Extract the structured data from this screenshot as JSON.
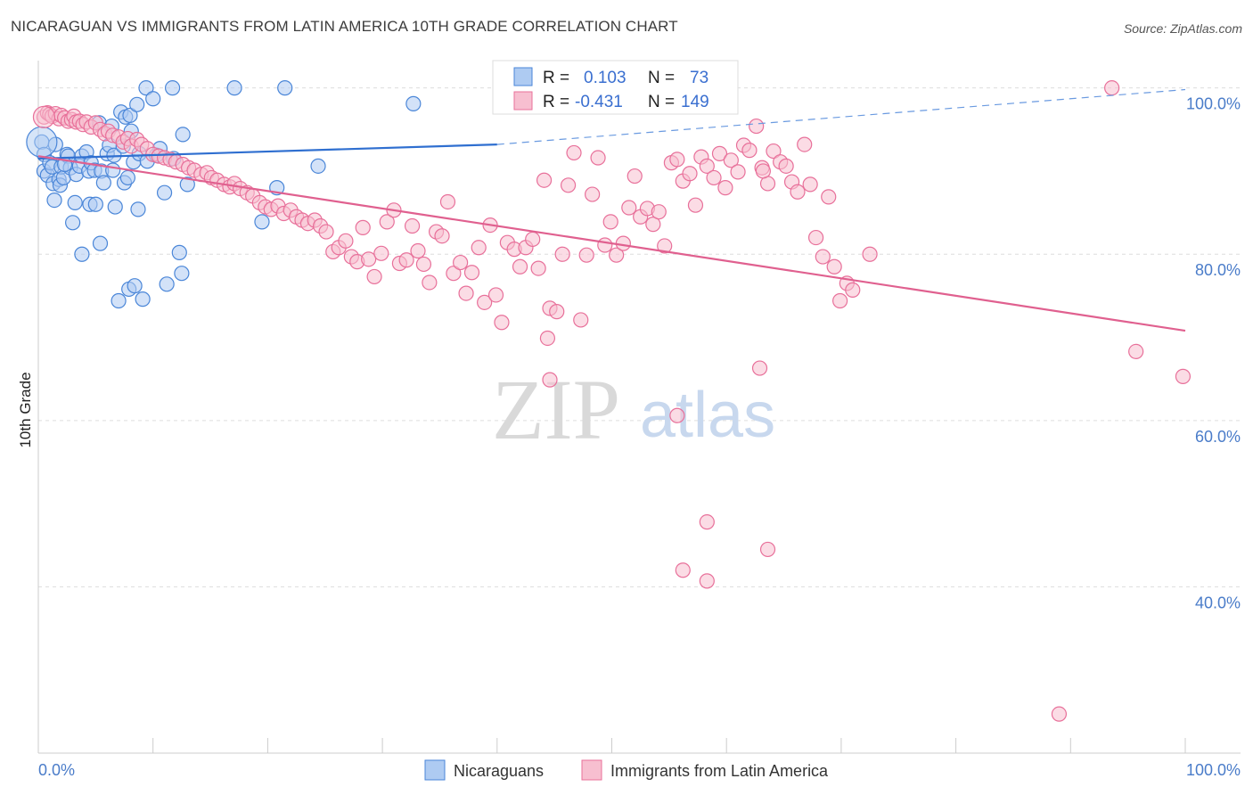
{
  "header": {
    "title": "NICARAGUAN VS IMMIGRANTS FROM LATIN AMERICA 10TH GRADE CORRELATION CHART",
    "source": "Source: ZipAtlas.com"
  },
  "watermark": {
    "zip": "ZIP",
    "atlas": "atlas"
  },
  "colors": {
    "blue": "#4a86d8",
    "blue_fill": "#aecbf2",
    "pink": "#e8709a",
    "pink_fill": "#f7bfd0",
    "tick": "#4a7cc9",
    "grid": "#dddddd"
  },
  "stats": {
    "r_label": "R =",
    "n_label": "N =",
    "blue": {
      "r": "0.103",
      "n": "73"
    },
    "pink": {
      "r": "-0.431",
      "n": "149"
    }
  },
  "legend": {
    "blue": "Nicaraguans",
    "pink": "Immigrants from Latin America"
  },
  "chart_data": {
    "type": "scatter",
    "title": "NICARAGUAN VS IMMIGRANTS FROM LATIN AMERICA 10TH GRADE CORRELATION CHART",
    "xlabel": "",
    "ylabel": "10th Grade",
    "xlim": [
      0,
      100
    ],
    "ylim": [
      20,
      102
    ],
    "x_tick_labels": [
      "0.0%",
      "100.0%"
    ],
    "y_ticks": [
      100,
      80,
      60,
      40
    ],
    "y_tick_labels": [
      "100.0%",
      "80.0%",
      "60.0%",
      "40.0%"
    ],
    "grid": true,
    "legend_position": "bottom",
    "series": [
      {
        "name": "Nicaraguans",
        "color": "#4a86d8",
        "r": 0.103,
        "n": 73,
        "trend": {
          "x": [
            0,
            40
          ],
          "y": [
            91.5,
            93.2
          ],
          "dashed_to": [
            100,
            99.8
          ]
        },
        "points": [
          [
            0.3,
            93.5
          ],
          [
            0.5,
            92
          ],
          [
            0.5,
            90
          ],
          [
            0.8,
            89.5
          ],
          [
            1,
            91
          ],
          [
            1.2,
            90.5
          ],
          [
            1.3,
            88.5
          ],
          [
            1.4,
            86.5
          ],
          [
            1.8,
            89
          ],
          [
            1.9,
            88.3
          ],
          [
            2,
            90.5
          ],
          [
            2.2,
            89.2
          ],
          [
            2.5,
            92
          ],
          [
            2.6,
            91.8
          ],
          [
            2.8,
            90.4
          ],
          [
            3,
            83.8
          ],
          [
            3.2,
            86.2
          ],
          [
            3.3,
            89.6
          ],
          [
            3.6,
            90.6
          ],
          [
            3.8,
            91.8
          ],
          [
            3.8,
            80
          ],
          [
            4.2,
            92.3
          ],
          [
            4.4,
            90
          ],
          [
            4.5,
            86
          ],
          [
            4.6,
            91
          ],
          [
            4.9,
            90.1
          ],
          [
            5.0,
            86
          ],
          [
            5.3,
            95.8
          ],
          [
            5.4,
            81.3
          ],
          [
            5.5,
            90
          ],
          [
            5.7,
            88.6
          ],
          [
            6,
            92.1
          ],
          [
            6.2,
            93.1
          ],
          [
            6.4,
            95.4
          ],
          [
            6.5,
            90.1
          ],
          [
            6.6,
            91.9
          ],
          [
            6.7,
            85.7
          ],
          [
            7,
            74.4
          ],
          [
            7.2,
            97.1
          ],
          [
            7.4,
            93
          ],
          [
            7.5,
            88.6
          ],
          [
            7.6,
            96.5
          ],
          [
            7.8,
            89.2
          ],
          [
            7.9,
            75.8
          ],
          [
            8,
            96.7
          ],
          [
            8.1,
            94.8
          ],
          [
            8.3,
            91.1
          ],
          [
            8.4,
            76.2
          ],
          [
            8.6,
            98
          ],
          [
            8.7,
            85.4
          ],
          [
            8.8,
            92.1
          ],
          [
            9.1,
            74.6
          ],
          [
            9.4,
            100
          ],
          [
            9.5,
            91.2
          ],
          [
            10,
            98.7
          ],
          [
            10.3,
            91.9
          ],
          [
            10.6,
            92.7
          ],
          [
            11,
            87.4
          ],
          [
            11.2,
            76.4
          ],
          [
            11.7,
            100
          ],
          [
            11.8,
            91.5
          ],
          [
            12.3,
            80.2
          ],
          [
            12.5,
            77.7
          ],
          [
            12.6,
            94.4
          ],
          [
            13.0,
            88.4
          ],
          [
            17.1,
            100
          ],
          [
            19.5,
            83.9
          ],
          [
            20.8,
            88
          ],
          [
            21.5,
            100
          ],
          [
            24.4,
            90.6
          ],
          [
            32.7,
            98.1
          ],
          [
            1.5,
            93.2
          ],
          [
            2.3,
            90.8
          ]
        ]
      },
      {
        "name": "Immigrants from Latin America",
        "color": "#e8709a",
        "r": -0.431,
        "n": 149,
        "trend": {
          "x": [
            0,
            100
          ],
          "y": [
            91.8,
            70.8
          ]
        },
        "points": [
          [
            0.5,
            96.5
          ],
          [
            0.8,
            97
          ],
          [
            1,
            96.8
          ],
          [
            1.2,
            96.6
          ],
          [
            1.5,
            96.9
          ],
          [
            1.8,
            96.3
          ],
          [
            2,
            96.7
          ],
          [
            2.3,
            96.4
          ],
          [
            2.6,
            96
          ],
          [
            2.9,
            96.2
          ],
          [
            3.1,
            96.6
          ],
          [
            3.3,
            95.9
          ],
          [
            3.6,
            96
          ],
          [
            3.9,
            95.6
          ],
          [
            4.2,
            95.9
          ],
          [
            4.6,
            95.3
          ],
          [
            5.0,
            95.8
          ],
          [
            5.4,
            95
          ],
          [
            5.8,
            94.5
          ],
          [
            6.1,
            94.8
          ],
          [
            6.5,
            94.3
          ],
          [
            7,
            94.1
          ],
          [
            7.4,
            93.5
          ],
          [
            7.8,
            93.9
          ],
          [
            8.1,
            93
          ],
          [
            8.6,
            93.8
          ],
          [
            9,
            93.2
          ],
          [
            9.5,
            92.7
          ],
          [
            10,
            92
          ],
          [
            10.5,
            91.8
          ],
          [
            11,
            91.6
          ],
          [
            11.5,
            91.4
          ],
          [
            12,
            91.1
          ],
          [
            12.6,
            90.8
          ],
          [
            13.1,
            90.4
          ],
          [
            13.6,
            90.1
          ],
          [
            14.2,
            89.6
          ],
          [
            14.7,
            89.8
          ],
          [
            15.1,
            89.2
          ],
          [
            15.6,
            88.9
          ],
          [
            16.2,
            88.4
          ],
          [
            16.7,
            88.1
          ],
          [
            17.1,
            88.5
          ],
          [
            17.6,
            87.9
          ],
          [
            18.2,
            87.4
          ],
          [
            18.7,
            87
          ],
          [
            19.3,
            86.2
          ],
          [
            19.8,
            85.7
          ],
          [
            20.3,
            85.4
          ],
          [
            20.9,
            85.8
          ],
          [
            21.4,
            84.9
          ],
          [
            22,
            85.3
          ],
          [
            22.5,
            84.5
          ],
          [
            23,
            84.1
          ],
          [
            23.5,
            83.7
          ],
          [
            24.1,
            84.1
          ],
          [
            24.6,
            83.4
          ],
          [
            25.1,
            82.7
          ],
          [
            25.7,
            80.3
          ],
          [
            26.2,
            80.8
          ],
          [
            26.8,
            81.6
          ],
          [
            27.3,
            79.7
          ],
          [
            27.8,
            79.1
          ],
          [
            28.3,
            83.2
          ],
          [
            28.8,
            79.4
          ],
          [
            29.3,
            77.3
          ],
          [
            29.9,
            80.1
          ],
          [
            30.4,
            83.9
          ],
          [
            31,
            85.3
          ],
          [
            31.5,
            78.9
          ],
          [
            32.1,
            79.3
          ],
          [
            32.6,
            83.4
          ],
          [
            33.1,
            80.4
          ],
          [
            33.6,
            78.8
          ],
          [
            34.1,
            76.6
          ],
          [
            34.7,
            82.7
          ],
          [
            35.2,
            82.2
          ],
          [
            35.7,
            86.3
          ],
          [
            36.2,
            77.7
          ],
          [
            36.8,
            79
          ],
          [
            37.3,
            75.3
          ],
          [
            37.8,
            77.8
          ],
          [
            38.4,
            80.8
          ],
          [
            38.9,
            74.2
          ],
          [
            39.4,
            83.5
          ],
          [
            39.9,
            75.1
          ],
          [
            40.4,
            71.8
          ],
          [
            40.9,
            81.4
          ],
          [
            41.5,
            80.6
          ],
          [
            42.0,
            78.5
          ],
          [
            42.5,
            80.8
          ],
          [
            43.1,
            81.8
          ],
          [
            43.6,
            78.3
          ],
          [
            44.1,
            88.9
          ],
          [
            44.6,
            73.5
          ],
          [
            45.2,
            73.1
          ],
          [
            45.7,
            80
          ],
          [
            46.2,
            88.3
          ],
          [
            46.7,
            92.2
          ],
          [
            47.3,
            72.1
          ],
          [
            47.8,
            79.9
          ],
          [
            48.3,
            87.2
          ],
          [
            48.8,
            91.6
          ],
          [
            49.4,
            81.1
          ],
          [
            49.9,
            83.9
          ],
          [
            50.4,
            79.9
          ],
          [
            51,
            81.3
          ],
          [
            51.5,
            85.6
          ],
          [
            52.0,
            89.4
          ],
          [
            52.5,
            84.5
          ],
          [
            53.1,
            85.5
          ],
          [
            53.6,
            83.6
          ],
          [
            54.1,
            85.1
          ],
          [
            54.6,
            81
          ],
          [
            55.2,
            91
          ],
          [
            55.7,
            91.4
          ],
          [
            56.2,
            88.8
          ],
          [
            56.8,
            89.7
          ],
          [
            57.3,
            85.9
          ],
          [
            57.8,
            91.7
          ],
          [
            58.3,
            90.6
          ],
          [
            58.9,
            89.2
          ],
          [
            59.4,
            92.1
          ],
          [
            59.9,
            88
          ],
          [
            60.4,
            91.3
          ],
          [
            61,
            89.9
          ],
          [
            61.5,
            93.1
          ],
          [
            62,
            92.5
          ],
          [
            62.6,
            95.4
          ],
          [
            63.1,
            90.4
          ],
          [
            63.6,
            88.5
          ],
          [
            64.1,
            92.4
          ],
          [
            64.7,
            91.1
          ],
          [
            65.2,
            90.6
          ],
          [
            65.7,
            88.7
          ],
          [
            66.2,
            87.5
          ],
          [
            66.8,
            93.2
          ],
          [
            67.3,
            88.4
          ],
          [
            67.8,
            82
          ],
          [
            68.4,
            79.7
          ],
          [
            68.9,
            86.9
          ],
          [
            69.4,
            78.5
          ],
          [
            69.9,
            74.4
          ],
          [
            70.5,
            76.5
          ],
          [
            71,
            75.7
          ],
          [
            72.5,
            80
          ],
          [
            62.9,
            66.3
          ],
          [
            55.7,
            60.6
          ],
          [
            58.3,
            47.8
          ],
          [
            56.2,
            42
          ],
          [
            58.3,
            40.7
          ],
          [
            63.6,
            44.5
          ],
          [
            93.6,
            100
          ],
          [
            95.7,
            68.3
          ],
          [
            99.8,
            65.3
          ],
          [
            89,
            24.7
          ],
          [
            44.4,
            69.9
          ],
          [
            44.6,
            64.9
          ],
          [
            63.2,
            90
          ]
        ]
      }
    ]
  }
}
